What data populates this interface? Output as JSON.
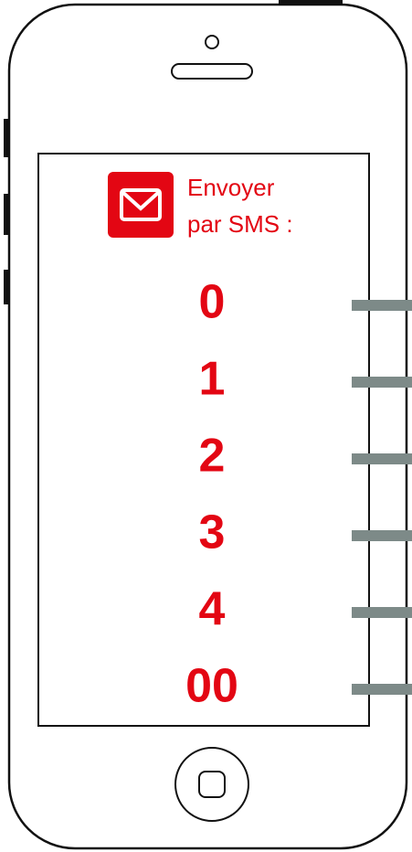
{
  "header": {
    "line1": "Envoyer",
    "line2": "par SMS :"
  },
  "digits": [
    "0",
    "1",
    "2",
    "3",
    "4",
    "00"
  ]
}
